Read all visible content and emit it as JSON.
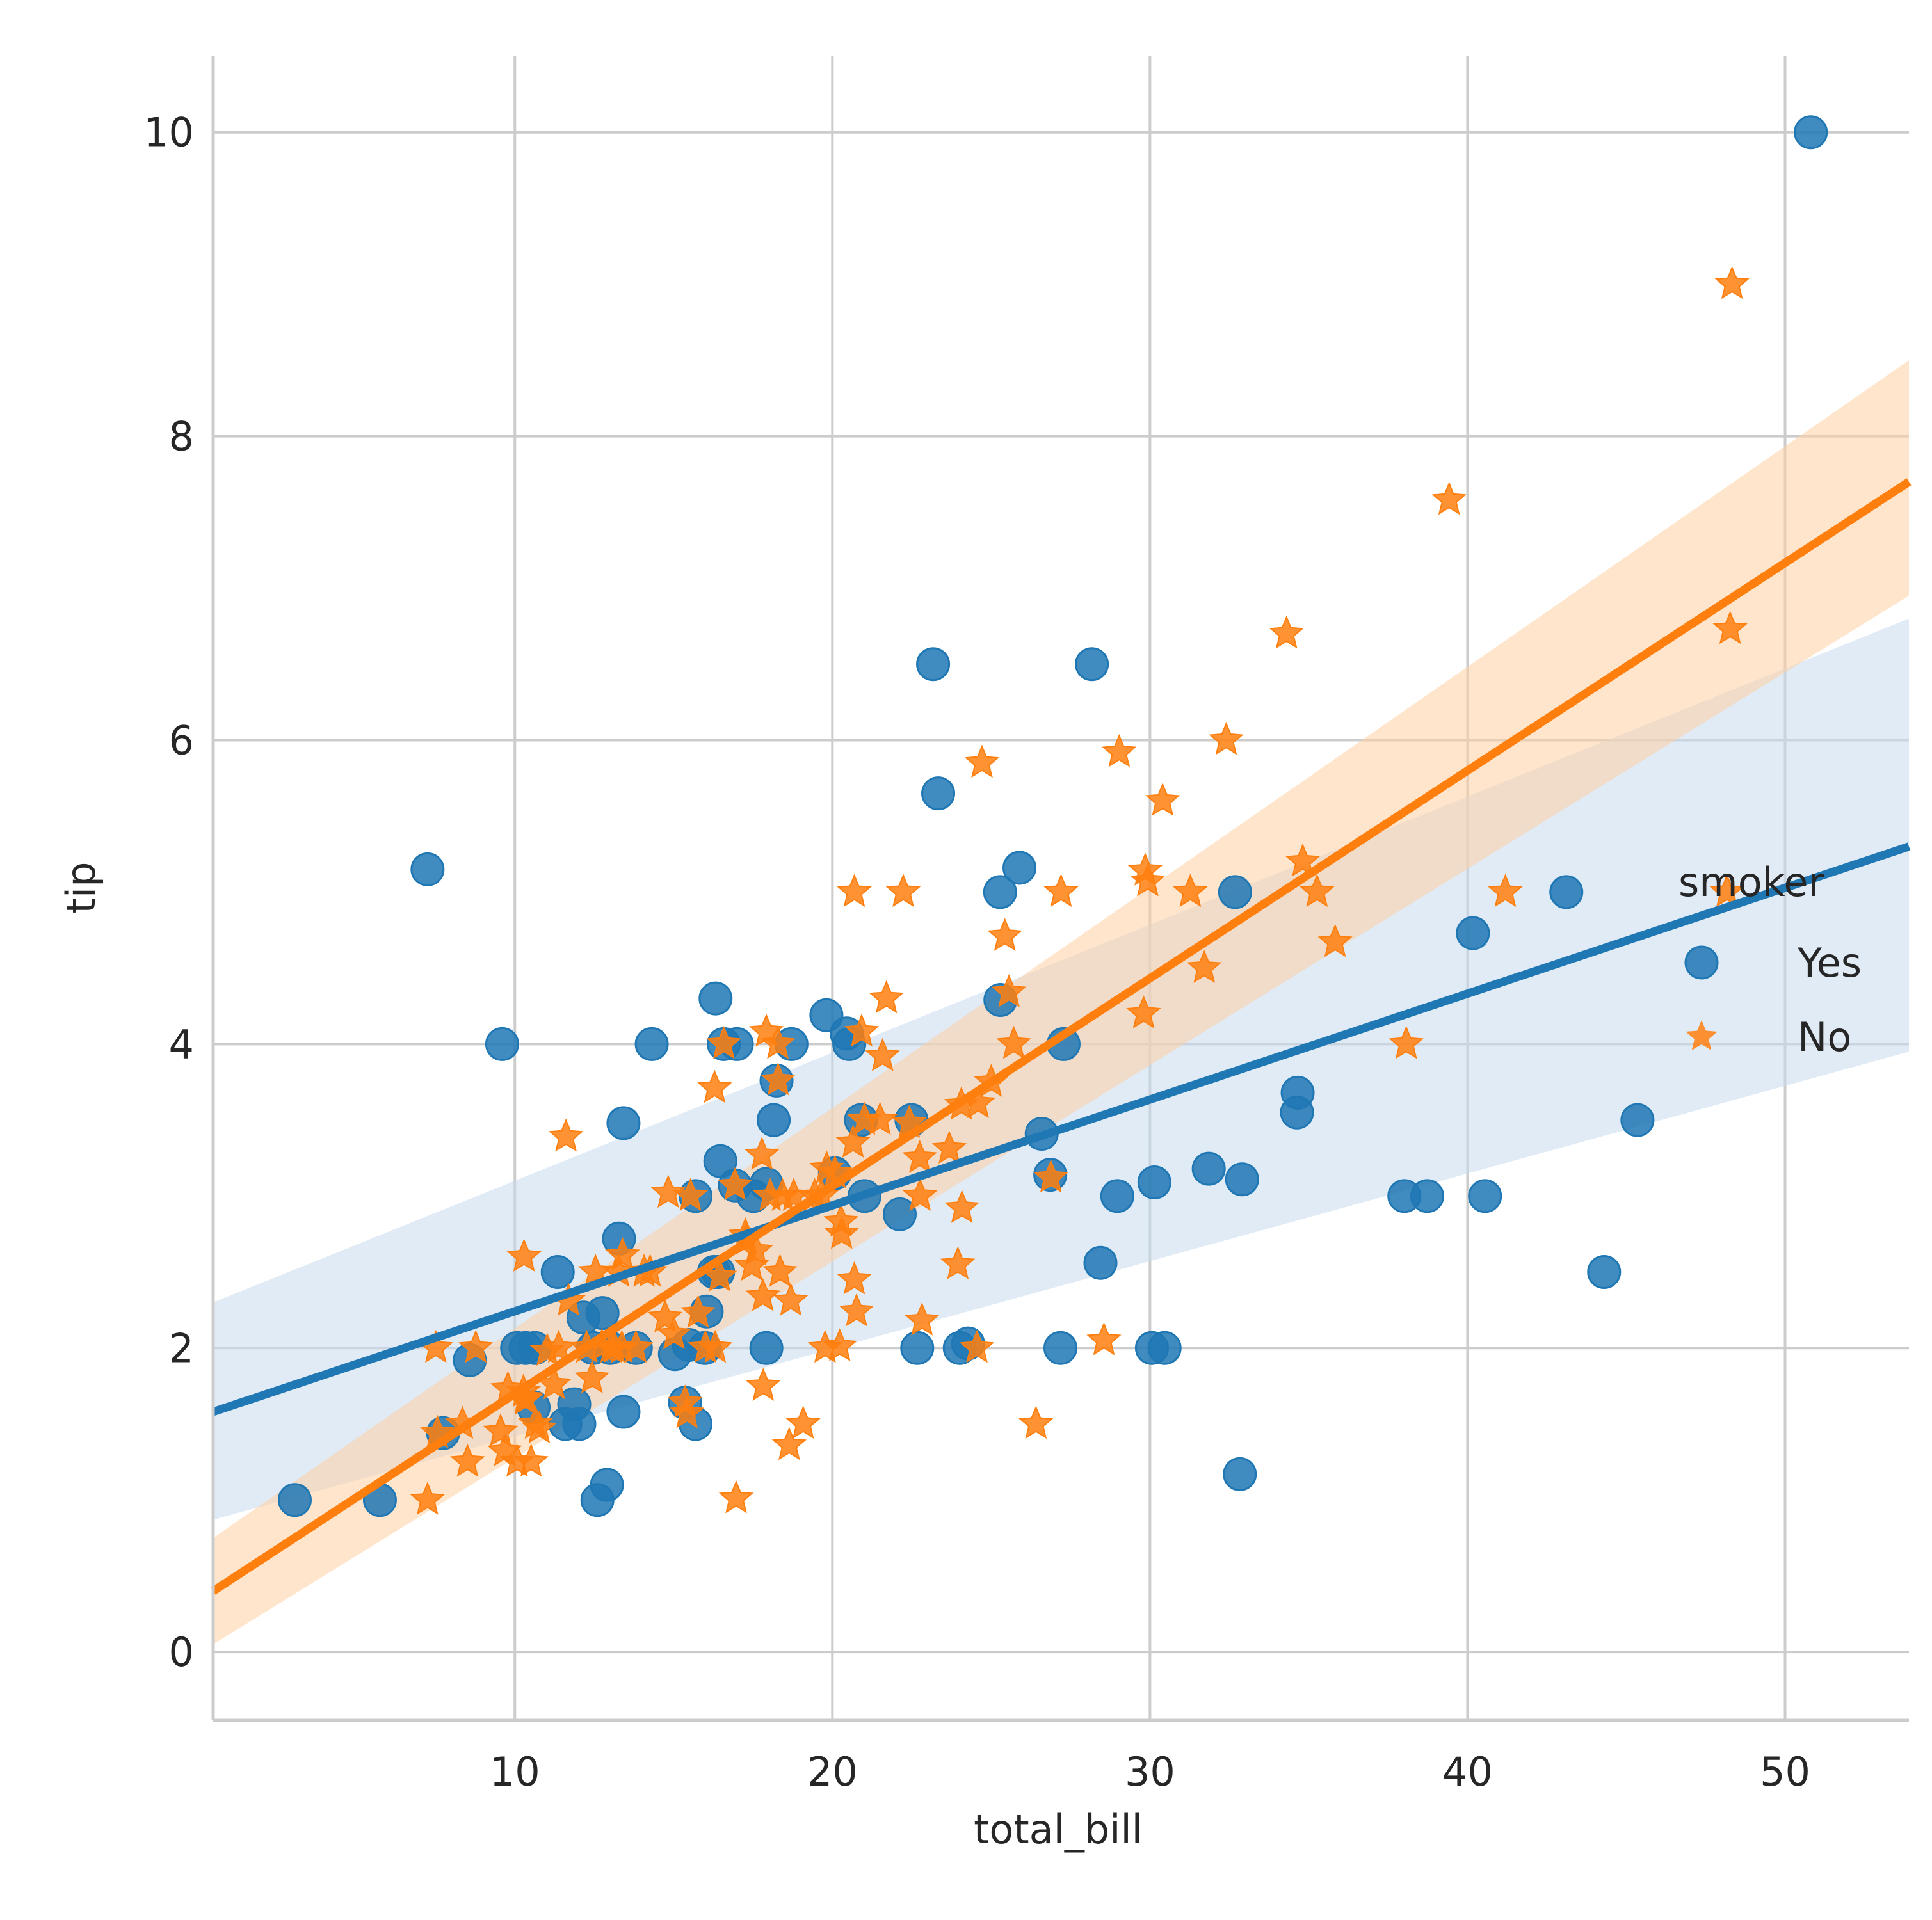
{
  "chart_data": {
    "type": "scatter",
    "title": "",
    "xlabel": "total_bill",
    "ylabel": "tip",
    "xlim": [
      0.5,
      53.9
    ],
    "ylim": [
      -0.45,
      10.5
    ],
    "xticks": [
      "10",
      "20",
      "30",
      "40",
      "50"
    ],
    "yticks": [
      "0",
      "2",
      "4",
      "6",
      "8",
      "10"
    ],
    "grid": true,
    "legend": {
      "title": "smoker",
      "placement": "right",
      "entries": [
        {
          "label": "Yes",
          "marker": "circle",
          "color": "#1f77b4"
        },
        {
          "label": "No",
          "marker": "star",
          "color": "#ff7f0e"
        }
      ]
    },
    "series": [
      {
        "name": "Yes",
        "marker": "circle",
        "color": "#1f77b4",
        "band_color": "#c6dbef",
        "regression": {
          "x": [
            0.5,
            53.9
          ],
          "y": [
            1.58,
            5.3
          ]
        },
        "ci_band": {
          "x": [
            0.5,
            53.9
          ],
          "upper": [
            2.3,
            6.8
          ],
          "lower": [
            0.87,
            3.95
          ]
        },
        "points": [
          [
            3.07,
            1.0
          ],
          [
            5.75,
            1.0
          ],
          [
            7.25,
            5.15
          ],
          [
            7.74,
            1.44
          ],
          [
            8.58,
            1.92
          ],
          [
            9.6,
            4.0
          ],
          [
            10.07,
            2.0
          ],
          [
            10.34,
            2.0
          ],
          [
            10.59,
            1.61
          ],
          [
            10.63,
            2.0
          ],
          [
            11.35,
            2.5
          ],
          [
            11.59,
            1.5
          ],
          [
            11.87,
            1.63
          ],
          [
            12.03,
            1.5
          ],
          [
            12.16,
            2.2
          ],
          [
            12.46,
            2.0
          ],
          [
            12.6,
            1.0
          ],
          [
            12.76,
            2.23
          ],
          [
            12.9,
            1.1
          ],
          [
            13.0,
            2.0
          ],
          [
            13.28,
            2.72
          ],
          [
            13.42,
            3.48
          ],
          [
            13.42,
            1.58
          ],
          [
            13.81,
            2.0
          ],
          [
            14.31,
            4.0
          ],
          [
            15.04,
            1.96
          ],
          [
            15.36,
            1.64
          ],
          [
            15.48,
            2.02
          ],
          [
            15.69,
            3.0
          ],
          [
            15.69,
            1.5
          ],
          [
            15.98,
            2.0
          ],
          [
            16.04,
            2.24
          ],
          [
            16.27,
            2.5
          ],
          [
            16.32,
            4.3
          ],
          [
            16.4,
            2.5
          ],
          [
            16.47,
            3.23
          ],
          [
            16.58,
            4.0
          ],
          [
            16.93,
            3.07
          ],
          [
            16.99,
            4.0
          ],
          [
            17.51,
            3.0
          ],
          [
            17.92,
            3.08
          ],
          [
            17.92,
            2.0
          ],
          [
            18.15,
            3.5
          ],
          [
            18.24,
            3.76
          ],
          [
            18.71,
            4.0
          ],
          [
            19.81,
            4.19
          ],
          [
            20.08,
            3.15
          ],
          [
            20.45,
            4.07
          ],
          [
            20.53,
            4.0
          ],
          [
            20.9,
            3.5
          ],
          [
            21.01,
            3.0
          ],
          [
            22.12,
            2.88
          ],
          [
            22.49,
            3.5
          ],
          [
            22.67,
            2.0
          ],
          [
            23.17,
            6.5
          ],
          [
            23.33,
            5.65
          ],
          [
            24.01,
            2.0
          ],
          [
            24.27,
            2.03
          ],
          [
            25.28,
            5.0
          ],
          [
            25.29,
            4.29
          ],
          [
            25.89,
            5.16
          ],
          [
            26.59,
            3.41
          ],
          [
            26.86,
            3.14
          ],
          [
            27.18,
            2.0
          ],
          [
            27.28,
            4.0
          ],
          [
            28.17,
            6.5
          ],
          [
            28.44,
            2.56
          ],
          [
            28.97,
            3.0
          ],
          [
            30.06,
            2.0
          ],
          [
            30.14,
            3.09
          ],
          [
            30.46,
            2.0
          ],
          [
            31.85,
            3.18
          ],
          [
            32.68,
            5.0
          ],
          [
            32.83,
            1.17
          ],
          [
            32.9,
            3.11
          ],
          [
            34.63,
            3.55
          ],
          [
            34.65,
            3.68
          ],
          [
            38.01,
            3.0
          ],
          [
            38.73,
            3.0
          ],
          [
            40.17,
            4.73
          ],
          [
            40.55,
            3.0
          ],
          [
            43.11,
            5.0
          ],
          [
            44.3,
            2.5
          ],
          [
            45.35,
            3.5
          ],
          [
            50.81,
            10.0
          ]
        ]
      },
      {
        "name": "No",
        "marker": "star",
        "color": "#ff7f0e",
        "band_color": "#fdd0a2",
        "regression": {
          "x": [
            0.5,
            53.9
          ],
          "y": [
            0.4,
            7.7
          ]
        },
        "ci_band": {
          "x": [
            0.5,
            53.9
          ],
          "upper": [
            0.75,
            8.5
          ],
          "lower": [
            0.05,
            6.95
          ]
        },
        "points": [
          [
            7.25,
            1.0
          ],
          [
            7.51,
            2.0
          ],
          [
            7.56,
            1.44
          ],
          [
            8.35,
            1.5
          ],
          [
            8.51,
            1.25
          ],
          [
            8.77,
            2.0
          ],
          [
            9.55,
            1.45
          ],
          [
            9.68,
            1.32
          ],
          [
            9.78,
            1.73
          ],
          [
            10.07,
            1.25
          ],
          [
            10.27,
            1.71
          ],
          [
            10.29,
            2.6
          ],
          [
            10.33,
            1.67
          ],
          [
            10.34,
            1.66
          ],
          [
            10.51,
            1.25
          ],
          [
            10.65,
            1.5
          ],
          [
            10.77,
            1.47
          ],
          [
            11.02,
            1.98
          ],
          [
            11.24,
            1.76
          ],
          [
            11.38,
            2.0
          ],
          [
            11.61,
            3.39
          ],
          [
            11.69,
            2.31
          ],
          [
            12.26,
            2.0
          ],
          [
            12.43,
            1.8
          ],
          [
            12.54,
            2.5
          ],
          [
            12.74,
            2.01
          ],
          [
            13.03,
            2.0
          ],
          [
            13.13,
            2.0
          ],
          [
            13.27,
            2.5
          ],
          [
            13.37,
            2.0
          ],
          [
            13.39,
            2.61
          ],
          [
            13.81,
            2.0
          ],
          [
            14.07,
            2.5
          ],
          [
            14.26,
            2.5
          ],
          [
            14.73,
            2.2
          ],
          [
            14.83,
            3.02
          ],
          [
            15.01,
            2.09
          ],
          [
            15.36,
            1.64
          ],
          [
            15.42,
            1.57
          ],
          [
            15.53,
            3.0
          ],
          [
            15.77,
            2.23
          ],
          [
            16.0,
            2.0
          ],
          [
            16.29,
            3.71
          ],
          [
            16.31,
            2.0
          ],
          [
            16.45,
            2.47
          ],
          [
            16.58,
            4.0
          ],
          [
            16.93,
            3.07
          ],
          [
            16.97,
            1.01
          ],
          [
            17.26,
            2.74
          ],
          [
            17.29,
            2.71
          ],
          [
            17.46,
            2.54
          ],
          [
            17.59,
            2.64
          ],
          [
            17.78,
            3.27
          ],
          [
            17.81,
            2.34
          ],
          [
            17.82,
            1.75
          ],
          [
            17.92,
            4.08
          ],
          [
            18.04,
            3.0
          ],
          [
            18.28,
            4.0
          ],
          [
            18.29,
            3.76
          ],
          [
            18.35,
            2.5
          ],
          [
            18.43,
            3.0
          ],
          [
            18.64,
            1.36
          ],
          [
            18.69,
            2.31
          ],
          [
            18.78,
            3.0
          ],
          [
            19.08,
            1.5
          ],
          [
            19.44,
            3.0
          ],
          [
            19.65,
            3.0
          ],
          [
            19.77,
            2.0
          ],
          [
            19.82,
            3.18
          ],
          [
            20.08,
            3.15
          ],
          [
            20.23,
            2.01
          ],
          [
            20.27,
            2.83
          ],
          [
            20.29,
            2.75
          ],
          [
            20.65,
            3.35
          ],
          [
            20.69,
            2.45
          ],
          [
            20.69,
            5.0
          ],
          [
            20.76,
            2.24
          ],
          [
            20.92,
            4.08
          ],
          [
            21.01,
            3.5
          ],
          [
            21.5,
            3.5
          ],
          [
            21.58,
            3.92
          ],
          [
            21.7,
            4.3
          ],
          [
            22.23,
            5.0
          ],
          [
            22.42,
            3.48
          ],
          [
            22.75,
            3.25
          ],
          [
            22.76,
            3.0
          ],
          [
            22.82,
            2.18
          ],
          [
            23.68,
            3.31
          ],
          [
            23.95,
            2.55
          ],
          [
            24.06,
            3.6
          ],
          [
            24.08,
            2.92
          ],
          [
            24.55,
            2.0
          ],
          [
            24.59,
            3.61
          ],
          [
            24.71,
            5.85
          ],
          [
            25.0,
            3.75
          ],
          [
            25.43,
            4.71
          ],
          [
            25.56,
            4.34
          ],
          [
            25.71,
            4.0
          ],
          [
            26.41,
            1.5
          ],
          [
            26.88,
            3.12
          ],
          [
            27.2,
            5.0
          ],
          [
            28.55,
            2.05
          ],
          [
            29.03,
            5.92
          ],
          [
            29.8,
            4.2
          ],
          [
            29.85,
            5.14
          ],
          [
            29.93,
            5.07
          ],
          [
            30.4,
            5.6
          ],
          [
            31.27,
            5.0
          ],
          [
            31.71,
            4.5
          ],
          [
            32.4,
            6.0
          ],
          [
            34.3,
            6.7
          ],
          [
            34.81,
            5.2
          ],
          [
            35.26,
            5.0
          ],
          [
            35.83,
            4.67
          ],
          [
            38.07,
            4.0
          ],
          [
            39.42,
            7.58
          ],
          [
            41.19,
            5.0
          ],
          [
            48.17,
            5.0
          ],
          [
            48.27,
            6.73
          ],
          [
            48.33,
            9.0
          ]
        ]
      }
    ]
  }
}
